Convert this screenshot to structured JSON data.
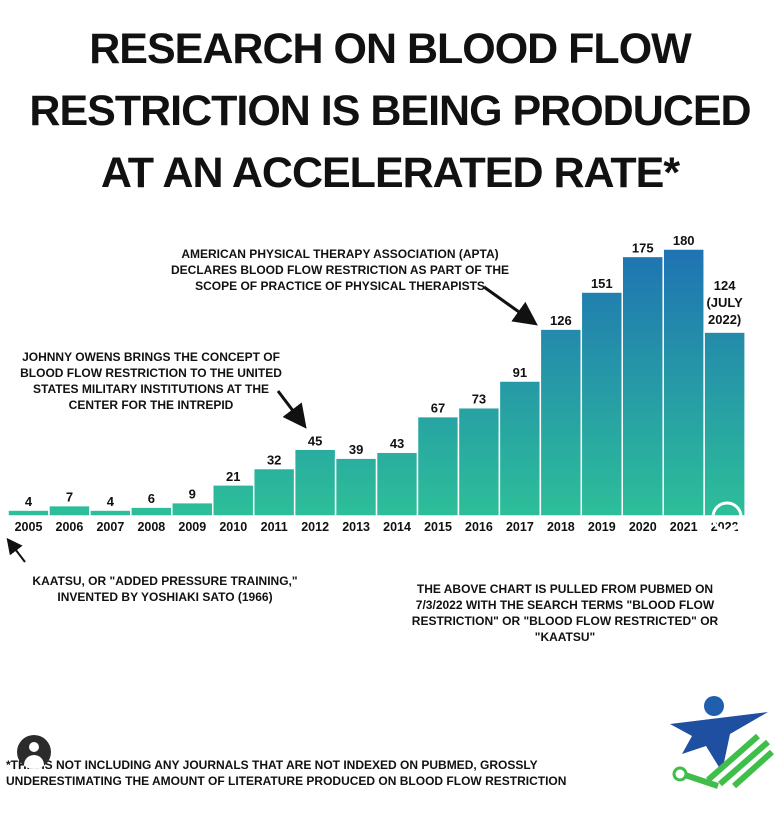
{
  "title_lines": [
    "RESEARCH ON BLOOD FLOW",
    "RESTRICTION IS BEING PRODUCED",
    "AT AN ACCELERATED RATE*"
  ],
  "annotations": {
    "apta_lines": [
      "AMERICAN PHYSICAL THERAPY ASSOCIATION (APTA)",
      "DECLARES BLOOD FLOW RESTRICTION AS PART OF THE",
      "SCOPE OF PRACTICE OF PHYSICAL THERAPISTS"
    ],
    "owens_lines": [
      "JOHNNY OWENS BRINGS THE CONCEPT OF",
      "BLOOD FLOW RESTRICTION TO THE UNITED",
      "STATES MILITARY INSTITUTIONS AT THE",
      "CENTER FOR THE INTREPID"
    ],
    "kaatsu_lines": [
      "KAATSU, OR \"ADDED PRESSURE TRAINING,\"",
      "INVENTED BY YOSHIAKI SATO  (1966)"
    ],
    "source_lines": [
      "THE ABOVE CHART IS PULLED FROM PUBMED ON",
      "7/3/2022 WITH THE SEARCH TERMS \"BLOOD FLOW",
      "RESTRICTION\" OR \"BLOOD FLOW RESTRICTED\" OR",
      "\"KAATSU\""
    ],
    "footnote_lines": [
      "*THIS IS NOT INCLUDING ANY JOURNALS THAT ARE NOT INDEXED ON PUBMED, GROSSLY",
      "UNDERESTIMATING THE AMOUNT OF LITERATURE PRODUCED ON BLOOD FLOW RESTRICTION"
    ]
  },
  "colors": {
    "bar_top": "#1f73b3",
    "bar_bottom": "#2dbf99",
    "text": "#111111"
  },
  "chart_data": {
    "type": "bar",
    "categories": [
      "2005",
      "2006",
      "2007",
      "2008",
      "2009",
      "2010",
      "2011",
      "2012",
      "2013",
      "2014",
      "2015",
      "2016",
      "2017",
      "2018",
      "2019",
      "2020",
      "2021",
      "2022"
    ],
    "values": [
      4,
      7,
      4,
      6,
      9,
      21,
      32,
      45,
      39,
      43,
      67,
      73,
      91,
      126,
      151,
      175,
      180,
      124
    ],
    "data_labels": [
      "4",
      "7",
      "4",
      "6",
      "9",
      "21",
      "32",
      "45",
      "39",
      "43",
      "67",
      "73",
      "91",
      "126",
      "151",
      "175",
      "180",
      "124"
    ],
    "last_label_lines": [
      "124",
      "(JULY",
      "2022)"
    ],
    "title": "",
    "xlabel": "",
    "ylabel": "",
    "ylim": [
      0,
      180
    ],
    "grid": false,
    "legend": "none"
  }
}
